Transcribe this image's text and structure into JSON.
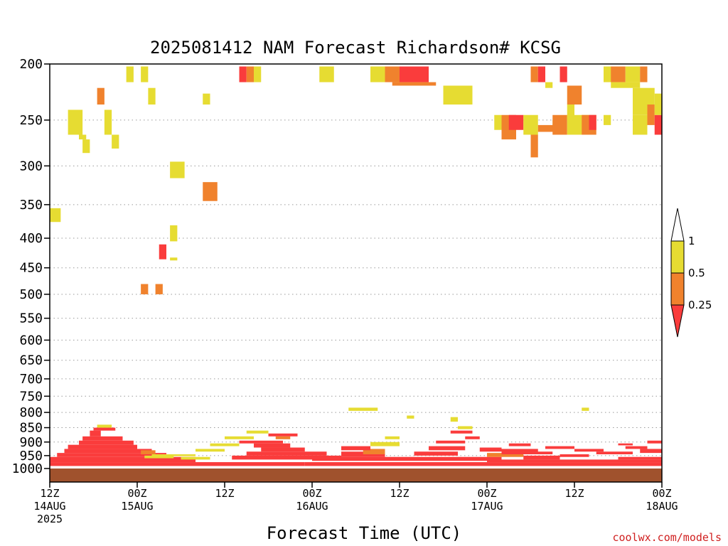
{
  "chart_data": {
    "type": "heatmap",
    "title": "2025081412 NAM Forecast Richardson# KCSG",
    "xlabel": "Forecast Time (UTC)",
    "ylabel": "",
    "y_axis": {
      "scale": "log",
      "reversed": true,
      "range_hpa": [
        200,
        1000
      ],
      "ticks": [
        200,
        250,
        300,
        350,
        400,
        450,
        500,
        550,
        600,
        650,
        700,
        750,
        800,
        850,
        900,
        950,
        1000
      ],
      "grid": "dotted"
    },
    "x_axis": {
      "range_hours": [
        0,
        84
      ],
      "ticks": [
        {
          "hour": 0,
          "line1": "12Z",
          "line2": "14AUG",
          "line3": "2025"
        },
        {
          "hour": 12,
          "line1": "00Z",
          "line2": "15AUG",
          "line3": ""
        },
        {
          "hour": 24,
          "line1": "12Z",
          "line2": "",
          "line3": ""
        },
        {
          "hour": 36,
          "line1": "00Z",
          "line2": "16AUG",
          "line3": ""
        },
        {
          "hour": 48,
          "line1": "12Z",
          "line2": "",
          "line3": ""
        },
        {
          "hour": 60,
          "line1": "00Z",
          "line2": "17AUG",
          "line3": ""
        },
        {
          "hour": 72,
          "line1": "12Z",
          "line2": "",
          "line3": ""
        },
        {
          "hour": 84,
          "line1": "00Z",
          "line2": "18AUG",
          "line3": ""
        }
      ]
    },
    "legend": {
      "placement": "right",
      "labels": [
        "1",
        "0.5",
        "0.25"
      ],
      "bins": [
        {
          "range": "> 1",
          "color": "#ffffff"
        },
        {
          "range": "0.5 - 1",
          "color": "#e6dc32"
        },
        {
          "range": "0.25 - 0.5",
          "color": "#f0822d"
        },
        {
          "range": "< 0.25",
          "color": "#fa3c3c"
        }
      ]
    },
    "ground_color": "#a0522d",
    "colors": {
      "y": "#e6dc32",
      "o": "#f0822d",
      "r": "#fa3c3c"
    },
    "cells_description": "Each cell: [start_hour, end_hour, top_hPa, bottom_hPa, category] where category y=0.5-1, o=0.25-0.5, r=<0.25",
    "cells": [
      [
        0,
        1.5,
        355,
        375,
        "y"
      ],
      [
        2.5,
        4.5,
        240,
        265,
        "y"
      ],
      [
        4,
        5,
        265,
        270,
        "y"
      ],
      [
        4.5,
        5.5,
        270,
        285,
        "y"
      ],
      [
        6.5,
        7.5,
        220,
        235,
        "o"
      ],
      [
        7.5,
        8.5,
        240,
        265,
        "y"
      ],
      [
        8.5,
        9.5,
        265,
        280,
        "y"
      ],
      [
        10.5,
        11.5,
        202,
        215,
        "y"
      ],
      [
        12.5,
        13.5,
        202,
        215,
        "y"
      ],
      [
        13.5,
        14.5,
        220,
        235,
        "y"
      ],
      [
        16.5,
        18.5,
        295,
        315,
        "y"
      ],
      [
        16.5,
        17.5,
        380,
        405,
        "y"
      ],
      [
        15,
        16,
        410,
        435,
        "r"
      ],
      [
        16.5,
        17.5,
        432,
        437,
        "y"
      ],
      [
        12.5,
        13.5,
        480,
        500,
        "o"
      ],
      [
        14.5,
        15.5,
        480,
        500,
        "o"
      ],
      [
        21,
        22,
        225,
        235,
        "y"
      ],
      [
        21,
        23,
        320,
        345,
        "o"
      ],
      [
        26,
        27,
        202,
        215,
        "r"
      ],
      [
        27,
        28,
        202,
        215,
        "o"
      ],
      [
        28,
        29,
        202,
        215,
        "y"
      ],
      [
        37,
        39,
        202,
        215,
        "y"
      ],
      [
        44,
        46,
        202,
        215,
        "y"
      ],
      [
        46,
        48,
        202,
        215,
        "o"
      ],
      [
        48,
        52,
        202,
        215,
        "r"
      ],
      [
        47,
        53,
        215,
        218,
        "o"
      ],
      [
        54,
        58,
        218,
        235,
        "y"
      ],
      [
        61,
        62,
        245,
        260,
        "y"
      ],
      [
        62,
        64,
        245,
        270,
        "o"
      ],
      [
        63,
        65,
        245,
        260,
        "r"
      ],
      [
        65,
        67,
        245,
        265,
        "y"
      ],
      [
        66,
        67,
        265,
        290,
        "o"
      ],
      [
        66,
        67,
        202,
        215,
        "o"
      ],
      [
        67,
        68,
        202,
        215,
        "r"
      ],
      [
        68,
        69,
        215,
        220,
        "y"
      ],
      [
        67,
        70,
        255,
        262,
        "o"
      ],
      [
        69,
        70,
        250,
        255,
        "y"
      ],
      [
        69,
        71,
        245,
        265,
        "o"
      ],
      [
        70,
        71,
        202,
        215,
        "r"
      ],
      [
        71,
        73,
        218,
        235,
        "o"
      ],
      [
        71,
        72,
        235,
        250,
        "y"
      ],
      [
        71,
        74,
        245,
        265,
        "y"
      ],
      [
        73,
        75,
        245,
        265,
        "o"
      ],
      [
        74,
        75,
        245,
        260,
        "r"
      ],
      [
        76,
        78,
        202,
        215,
        "y"
      ],
      [
        77,
        79,
        202,
        215,
        "o"
      ],
      [
        79,
        81,
        202,
        215,
        "y"
      ],
      [
        77,
        81,
        215,
        220,
        "y"
      ],
      [
        81,
        82,
        202,
        215,
        "o"
      ],
      [
        80,
        83,
        220,
        245,
        "y"
      ],
      [
        80,
        82,
        245,
        265,
        "y"
      ],
      [
        82,
        83,
        235,
        255,
        "o"
      ],
      [
        83,
        84,
        245,
        265,
        "r"
      ],
      [
        83,
        84,
        225,
        245,
        "y"
      ],
      [
        76,
        77,
        245,
        255,
        "y"
      ],
      [
        41,
        45,
        785,
        795,
        "y"
      ],
      [
        49,
        50,
        810,
        820,
        "y"
      ],
      [
        55,
        56,
        815,
        830,
        "y"
      ],
      [
        73,
        74,
        785,
        795,
        "y"
      ],
      [
        6.5,
        8.5,
        840,
        850,
        "y"
      ],
      [
        6,
        9,
        850,
        860,
        "r"
      ],
      [
        5.5,
        7,
        860,
        880,
        "r"
      ],
      [
        4.5,
        10,
        880,
        895,
        "r"
      ],
      [
        4,
        11.5,
        895,
        910,
        "r"
      ],
      [
        2.5,
        12,
        910,
        925,
        "r"
      ],
      [
        2,
        14,
        925,
        940,
        "r"
      ],
      [
        1,
        16,
        940,
        955,
        "r"
      ],
      [
        0,
        20,
        955,
        975,
        "r"
      ],
      [
        0,
        35,
        975,
        990,
        "r"
      ],
      [
        12.5,
        14.5,
        930,
        945,
        "o"
      ],
      [
        13,
        17,
        950,
        960,
        "y"
      ],
      [
        14,
        20,
        945,
        952,
        "y"
      ],
      [
        18,
        22,
        955,
        965,
        "y"
      ],
      [
        20,
        24,
        925,
        935,
        "y"
      ],
      [
        22,
        26,
        905,
        915,
        "y"
      ],
      [
        24,
        28,
        880,
        890,
        "y"
      ],
      [
        27,
        30,
        860,
        870,
        "y"
      ],
      [
        26,
        32,
        895,
        905,
        "r"
      ],
      [
        28,
        33,
        905,
        920,
        "r"
      ],
      [
        29,
        35,
        920,
        935,
        "r"
      ],
      [
        27,
        38,
        935,
        950,
        "r"
      ],
      [
        25,
        40,
        950,
        965,
        "r"
      ],
      [
        30,
        34,
        870,
        880,
        "r"
      ],
      [
        31,
        33,
        880,
        890,
        "o"
      ],
      [
        36,
        48,
        955,
        970,
        "r"
      ],
      [
        40,
        46,
        935,
        955,
        "r"
      ],
      [
        43,
        46,
        925,
        945,
        "o"
      ],
      [
        40,
        44,
        915,
        930,
        "r"
      ],
      [
        44,
        48,
        900,
        915,
        "y"
      ],
      [
        46,
        48,
        880,
        890,
        "y"
      ],
      [
        35,
        85,
        975,
        990,
        "r"
      ],
      [
        48,
        62,
        955,
        970,
        "r"
      ],
      [
        50,
        56,
        935,
        950,
        "r"
      ],
      [
        52,
        57,
        915,
        930,
        "r"
      ],
      [
        53,
        57,
        895,
        905,
        "r"
      ],
      [
        55,
        58,
        860,
        870,
        "r"
      ],
      [
        56,
        58,
        845,
        855,
        "y"
      ],
      [
        57,
        59,
        880,
        890,
        "r"
      ],
      [
        59,
        62,
        920,
        935,
        "r"
      ],
      [
        60,
        65,
        940,
        955,
        "o"
      ],
      [
        62,
        67,
        925,
        945,
        "r"
      ],
      [
        63,
        66,
        905,
        915,
        "r"
      ],
      [
        65,
        70,
        950,
        965,
        "r"
      ],
      [
        66,
        69,
        935,
        945,
        "r"
      ],
      [
        68,
        72,
        915,
        925,
        "r"
      ],
      [
        70,
        74,
        945,
        955,
        "r"
      ],
      [
        72,
        76,
        925,
        935,
        "r"
      ],
      [
        75,
        80,
        935,
        945,
        "r"
      ],
      [
        78,
        84,
        955,
        965,
        "r"
      ],
      [
        79,
        82,
        915,
        925,
        "r"
      ],
      [
        82,
        84,
        895,
        905,
        "r"
      ],
      [
        81,
        84,
        925,
        940,
        "r"
      ],
      [
        78,
        80,
        905,
        912,
        "r"
      ],
      [
        60,
        84,
        965,
        975,
        "r"
      ]
    ]
  },
  "credit": "coolwx.com/models"
}
